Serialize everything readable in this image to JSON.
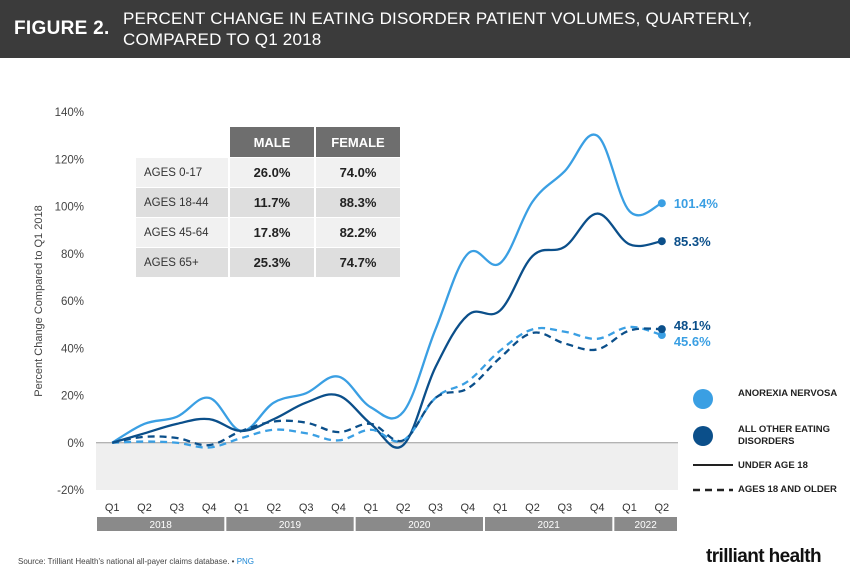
{
  "header": {
    "figure_label": "FIGURE 2.",
    "title_line1": "PERCENT CHANGE IN EATING DISORDER PATIENT VOLUMES, QUARTERLY,",
    "title_line2": "COMPARED TO Q1 2018"
  },
  "table": {
    "col_male": "MALE",
    "col_female": "FEMALE",
    "rows": [
      {
        "label": "AGES 0-17",
        "male": "26.0%",
        "female": "74.0%"
      },
      {
        "label": "AGES 18-44",
        "male": "11.7%",
        "female": "88.3%"
      },
      {
        "label": "AGES 45-64",
        "male": "17.8%",
        "female": "82.2%"
      },
      {
        "label": "AGES 65+",
        "male": "25.3%",
        "female": "74.7%"
      }
    ]
  },
  "legend": {
    "anorexia": "ANOREXIA NERVOSA",
    "other": "ALL OTHER EATING DISORDERS",
    "under18": "UNDER AGE 18",
    "ages18older": "AGES 18 AND OLDER"
  },
  "colors": {
    "anorexia": "#3a9fe3",
    "other": "#0b4f8a",
    "header_bg": "#3b3b3b"
  },
  "footer": {
    "source": "Source: Trilliant Health's national all-payer claims database.",
    "png": "PNG",
    "logo": "trilliant health"
  },
  "chart_data": {
    "type": "line",
    "ylabel": "Percent Change Compared to Q1 2018",
    "ylim": [
      -20,
      140
    ],
    "y_ticks": [
      -20,
      0,
      20,
      40,
      60,
      80,
      100,
      120,
      140
    ],
    "y_tick_labels": [
      "-20%",
      "0%",
      "20%",
      "40%",
      "60%",
      "80%",
      "100%",
      "120%",
      "140%"
    ],
    "categories": [
      "Q1",
      "Q2",
      "Q3",
      "Q4",
      "Q1",
      "Q2",
      "Q3",
      "Q4",
      "Q1",
      "Q2",
      "Q3",
      "Q4",
      "Q1",
      "Q2",
      "Q3",
      "Q4",
      "Q1",
      "Q2"
    ],
    "years": [
      {
        "label": "2018",
        "quarters": 4
      },
      {
        "label": "2019",
        "quarters": 4
      },
      {
        "label": "2020",
        "quarters": 4
      },
      {
        "label": "2021",
        "quarters": 4
      },
      {
        "label": "2022",
        "quarters": 2
      }
    ],
    "series": [
      {
        "name": "Anorexia Nervosa - Under Age 18",
        "group": "anorexia",
        "style": "solid",
        "values": [
          0,
          8,
          11,
          19,
          5,
          17,
          21,
          28,
          15,
          13,
          48,
          80,
          76,
          102,
          115,
          130,
          98,
          101.4
        ],
        "end_label": "101.4%"
      },
      {
        "name": "All Other Eating Disorders - Under Age 18",
        "group": "other",
        "style": "solid",
        "values": [
          0,
          4,
          8,
          10,
          5,
          10,
          17,
          20,
          8,
          -1,
          32,
          54,
          56,
          79,
          83,
          97,
          84,
          85.3
        ],
        "end_label": "85.3%"
      },
      {
        "name": "Anorexia Nervosa - Ages 18 and Older",
        "group": "anorexia",
        "style": "dashed",
        "values": [
          0,
          0.5,
          0,
          -2,
          2,
          5.5,
          4,
          1,
          5.5,
          1,
          19,
          26,
          39,
          48,
          47,
          44,
          49,
          45.6
        ],
        "end_label": "45.6%"
      },
      {
        "name": "All Other Eating Disorders - Ages 18 and Older",
        "group": "other",
        "style": "dashed",
        "values": [
          0,
          2.5,
          2,
          -1,
          5,
          9,
          8.5,
          4.5,
          8,
          1,
          19,
          23,
          36,
          46.5,
          42,
          39.5,
          47.5,
          48.1
        ],
        "end_label": "48.1%"
      }
    ]
  }
}
